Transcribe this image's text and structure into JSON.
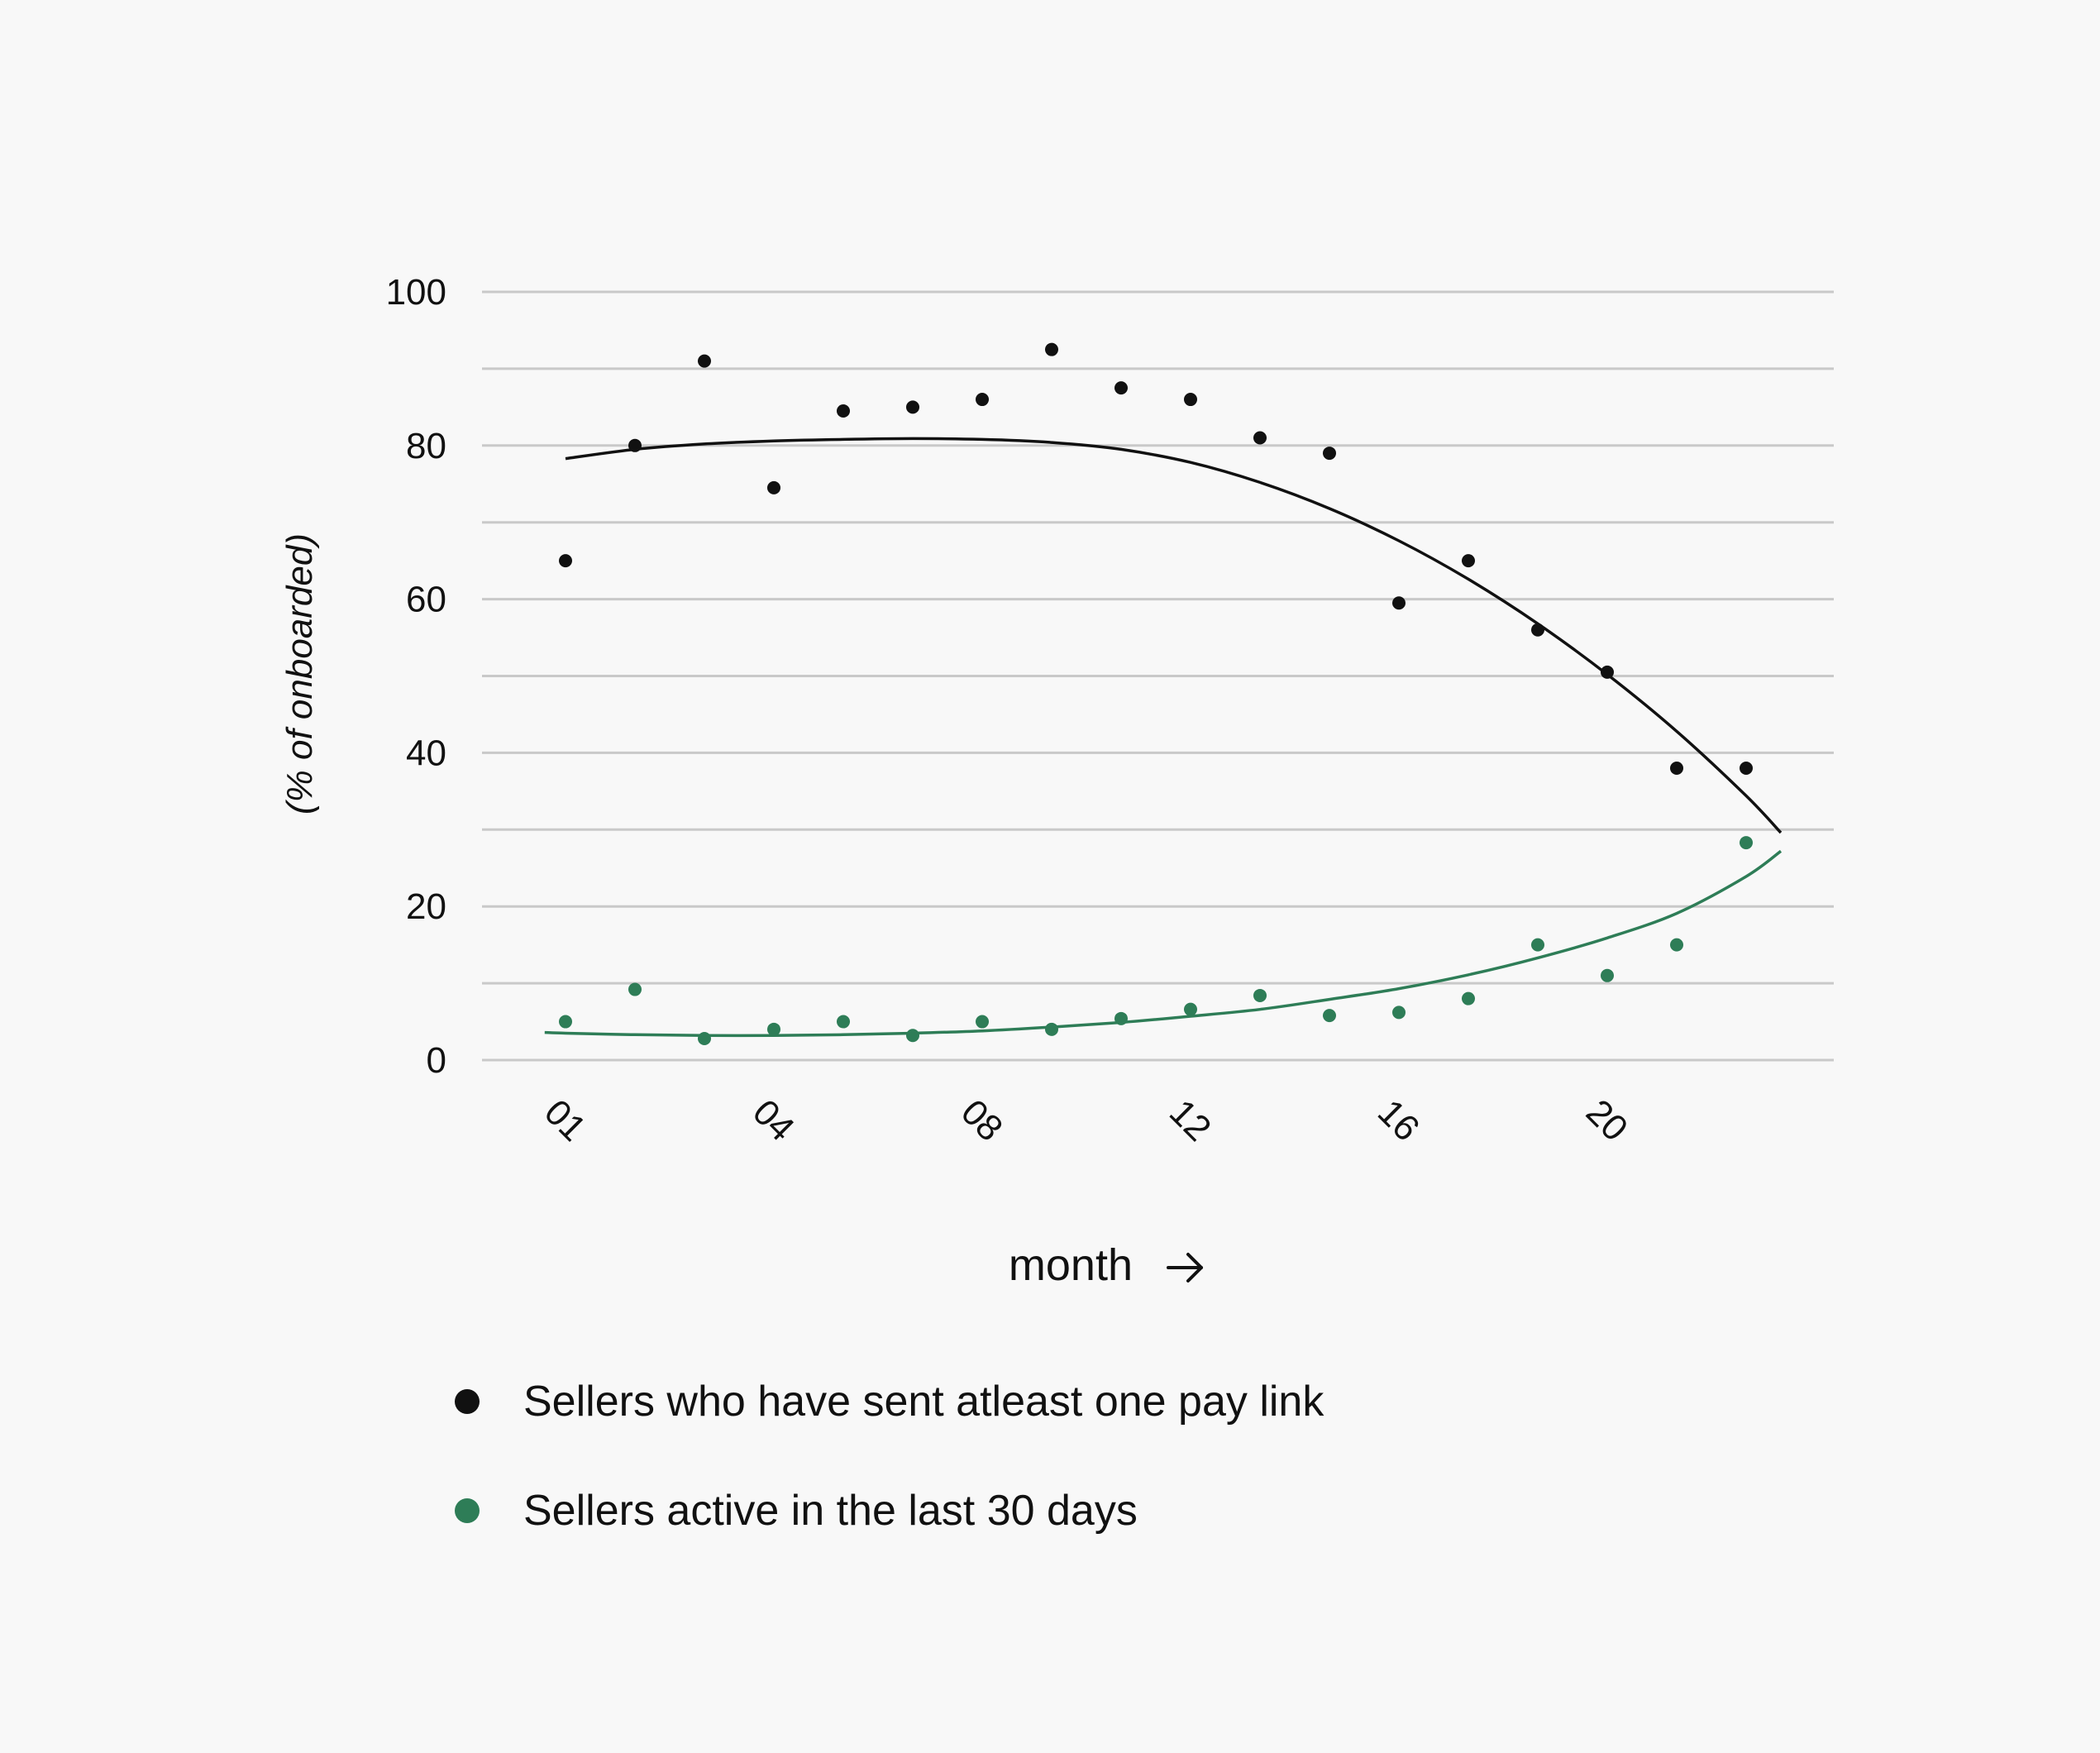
{
  "chart_data": {
    "type": "scatter",
    "title": "",
    "xlabel": "month",
    "xlabel_icon": "arrow-right-icon",
    "ylabel": "(% of onboarded)",
    "ylim": [
      0,
      100
    ],
    "yticks": [
      0,
      20,
      40,
      60,
      80,
      100
    ],
    "y_gridlines": [
      0,
      10,
      20,
      30,
      40,
      50,
      60,
      70,
      80,
      90,
      100
    ],
    "xlim": [
      0.3,
      18.5
    ],
    "x_tick_labels": [
      {
        "x": 1,
        "label": "01"
      },
      {
        "x": 4,
        "label": "04"
      },
      {
        "x": 7,
        "label": "08"
      },
      {
        "x": 10,
        "label": "12"
      },
      {
        "x": 13,
        "label": "16"
      },
      {
        "x": 16,
        "label": "20"
      }
    ],
    "grid": true,
    "legend_position": "bottom-left",
    "series": [
      {
        "name": "Sellers who have sent atleast one pay link",
        "color": "#111111",
        "x": [
          1,
          2,
          3,
          4,
          5,
          6,
          7,
          8,
          9,
          10,
          11,
          12,
          13,
          14,
          15,
          16,
          17,
          18
        ],
        "values": [
          65,
          80,
          91,
          74.5,
          84.5,
          85,
          86,
          92.5,
          87.5,
          86,
          81,
          79,
          59.5,
          65,
          56,
          50.5,
          38,
          38
        ],
        "trend": {
          "x": [
            1,
            2,
            3,
            4,
            5,
            6,
            7,
            8,
            9,
            10,
            11,
            12,
            13,
            14,
            15,
            16,
            17,
            18,
            18.5
          ],
          "values": [
            78.3,
            79.5,
            80.2,
            80.6,
            80.8,
            80.9,
            80.8,
            80.4,
            79.5,
            77.8,
            75.2,
            71.8,
            67.6,
            62.6,
            56.8,
            50.2,
            42.8,
            34.4,
            29.6
          ]
        }
      },
      {
        "name": "Sellers active in the last 30 days",
        "color": "#2e7d57",
        "x": [
          1,
          2,
          3,
          4,
          5,
          6,
          7,
          8,
          9,
          10,
          11,
          12,
          13,
          14,
          15,
          16,
          17,
          18
        ],
        "values": [
          5,
          9.2,
          2.8,
          4,
          5,
          3.2,
          5,
          4,
          5.4,
          6.6,
          8.4,
          5.8,
          6.2,
          8,
          15,
          11,
          15,
          28.3
        ],
        "trend": {
          "x": [
            0.7,
            1,
            2,
            3,
            4,
            5,
            6,
            7,
            8,
            9,
            10,
            11,
            12,
            13,
            14,
            15,
            16,
            17,
            18,
            18.5
          ],
          "values": [
            3.6,
            3.5,
            3.3,
            3.2,
            3.2,
            3.3,
            3.5,
            3.8,
            4.3,
            4.9,
            5.7,
            6.6,
            7.9,
            9.3,
            11.1,
            13.3,
            15.9,
            19.1,
            23.9,
            27.2
          ]
        }
      }
    ]
  }
}
